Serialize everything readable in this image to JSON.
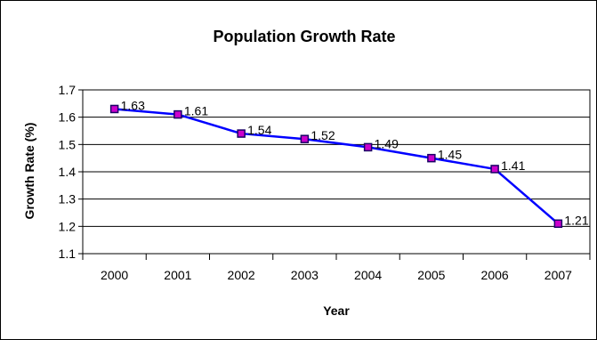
{
  "chart_data": {
    "type": "line",
    "title": "Population Growth Rate",
    "xlabel": "Year",
    "ylabel": "Growth Rate (%)",
    "categories": [
      "2000",
      "2001",
      "2002",
      "2003",
      "2004",
      "2005",
      "2006",
      "2007"
    ],
    "series": [
      {
        "values": [
          1.63,
          1.61,
          1.54,
          1.52,
          1.49,
          1.45,
          1.41,
          1.21
        ]
      }
    ],
    "data_labels": [
      "1.63",
      "1.61",
      "1.54",
      "1.52",
      "1.49",
      "1.45",
      "1.41",
      "1.21"
    ],
    "y_ticks": [
      "1.1",
      "1.2",
      "1.3",
      "1.4",
      "1.5",
      "1.6",
      "1.7"
    ],
    "ylim": [
      1.1,
      1.7
    ],
    "grid": "horizontal",
    "legend": "none",
    "colors": {
      "line": "#0000ff",
      "marker_fill": "#cc00cc",
      "marker_border": "#1a0066",
      "grid": "#000000"
    }
  }
}
